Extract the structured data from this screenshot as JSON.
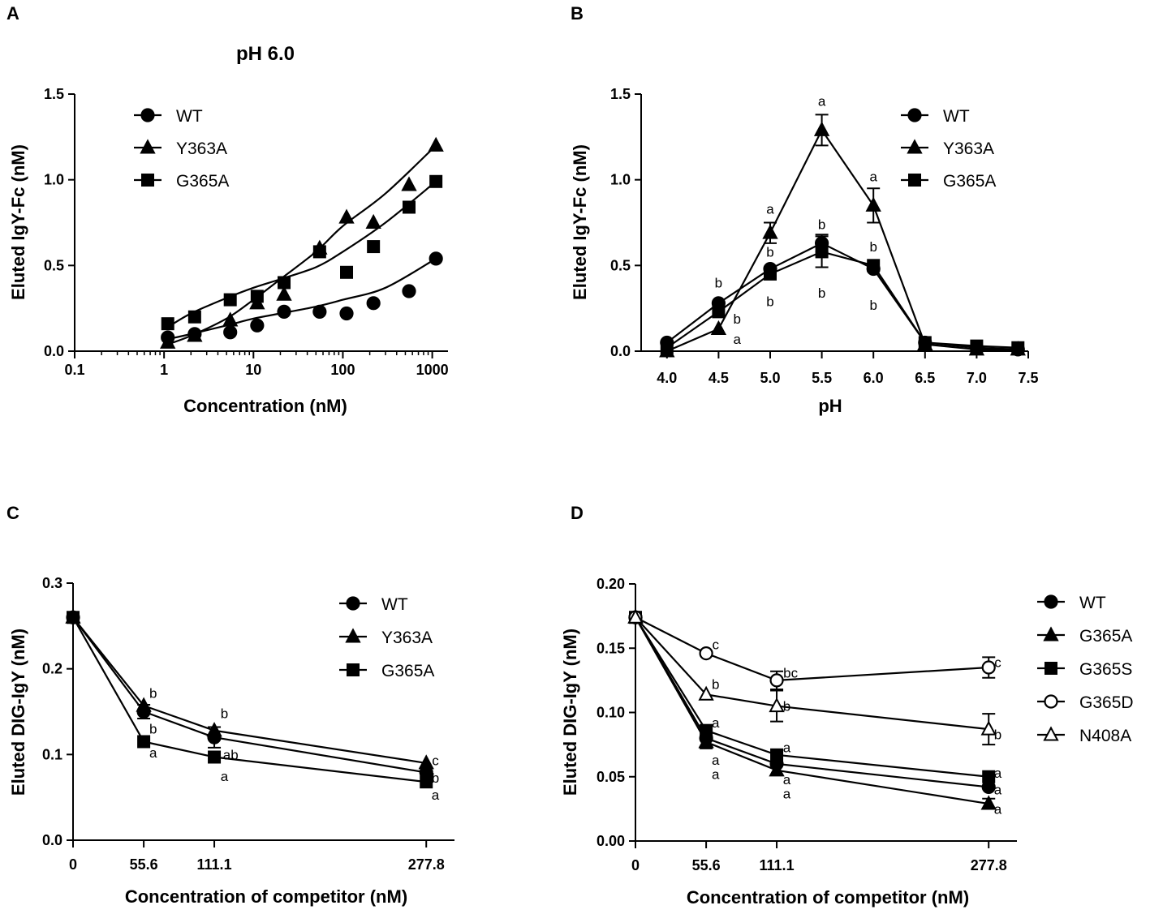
{
  "figure": {
    "panels": [
      "A",
      "B",
      "C",
      "D"
    ],
    "panel_A_title": "pH 6.0"
  },
  "chart_data": [
    {
      "panel": "A",
      "type": "line",
      "title": "pH 6.0",
      "xlabel": "Concentration (nM)",
      "ylabel": "Eluted IgY-Fc (nM)",
      "xscale": "log",
      "xlim": [
        0.1,
        1500
      ],
      "ylim": [
        0,
        1.5
      ],
      "xticks": [
        0.1,
        1,
        10,
        100,
        1000
      ],
      "xtick_labels": [
        "0.1",
        "1",
        "10",
        "100",
        "1000"
      ],
      "yticks": [
        0,
        0.5,
        1.0,
        1.5
      ],
      "ytick_labels": [
        "0.0",
        "0.5",
        "1.0",
        "1.5"
      ],
      "legend_position": "top-left",
      "series": [
        {
          "name": "WT",
          "marker": "circle-filled",
          "x": [
            1.1,
            2.2,
            5.5,
            11,
            22,
            55,
            110,
            220,
            550,
            1100
          ],
          "y": [
            0.08,
            0.1,
            0.11,
            0.15,
            0.23,
            0.23,
            0.22,
            0.28,
            0.35,
            0.54
          ],
          "curve_y": [
            0.07,
            0.1,
            0.15,
            0.19,
            0.22,
            0.26,
            0.3,
            0.37,
            0.54
          ]
        },
        {
          "name": "Y363A",
          "marker": "triangle-filled",
          "x": [
            1.1,
            2.2,
            5.5,
            11,
            22,
            55,
            110,
            220,
            550,
            1100
          ],
          "y": [
            0.05,
            0.09,
            0.18,
            0.28,
            0.33,
            0.6,
            0.78,
            0.75,
            0.97,
            1.2
          ],
          "curve_y": [
            0.04,
            0.09,
            0.19,
            0.3,
            0.42,
            0.58,
            0.73,
            0.92,
            1.2
          ]
        },
        {
          "name": "G365A",
          "marker": "square-filled",
          "x": [
            1.1,
            2.2,
            5.5,
            11,
            22,
            55,
            110,
            220,
            550,
            1100
          ],
          "y": [
            0.16,
            0.2,
            0.3,
            0.32,
            0.4,
            0.58,
            0.46,
            0.61,
            0.84,
            0.99
          ],
          "curve_y": [
            0.14,
            0.22,
            0.31,
            0.37,
            0.42,
            0.49,
            0.58,
            0.75,
            0.99
          ]
        }
      ],
      "curve_x": [
        1.1,
        2,
        5,
        10,
        20,
        50,
        100,
        300,
        1100
      ]
    },
    {
      "panel": "B",
      "type": "line",
      "xlabel": "pH",
      "ylabel": "Eluted IgY-Fc (nM)",
      "xlim": [
        3.75,
        7.5
      ],
      "ylim": [
        0,
        1.5
      ],
      "xticks": [
        4.0,
        4.5,
        5.0,
        5.5,
        6.0,
        6.5,
        7.0,
        7.5
      ],
      "xtick_labels": [
        "4.0",
        "4.5",
        "5.0",
        "5.5",
        "6.0",
        "6.5",
        "7.0",
        "7.5"
      ],
      "yticks": [
        0,
        0.5,
        1.0,
        1.5
      ],
      "ytick_labels": [
        "0.0",
        "0.5",
        "1.0",
        "1.5"
      ],
      "legend_position": "top-right",
      "series": [
        {
          "name": "WT",
          "marker": "circle-filled",
          "x": [
            4.0,
            4.5,
            5.0,
            5.5,
            6.0,
            6.5,
            7.0,
            7.4
          ],
          "y": [
            0.05,
            0.28,
            0.48,
            0.63,
            0.48,
            0.05,
            0.02,
            0.01
          ],
          "err": [
            0,
            0,
            0,
            0.05,
            0,
            0,
            0,
            0
          ]
        },
        {
          "name": "Y363A",
          "marker": "triangle-filled",
          "x": [
            4.0,
            4.5,
            5.0,
            5.5,
            6.0,
            6.5,
            7.0,
            7.4
          ],
          "y": [
            0.0,
            0.13,
            0.69,
            1.29,
            0.85,
            0.04,
            0.01,
            0.01
          ],
          "err": [
            0,
            0,
            0.06,
            0.09,
            0.1,
            0,
            0,
            0
          ]
        },
        {
          "name": "G365A",
          "marker": "square-filled",
          "x": [
            4.0,
            4.5,
            5.0,
            5.5,
            6.0,
            6.5,
            7.0,
            7.4
          ],
          "y": [
            0.02,
            0.23,
            0.45,
            0.58,
            0.5,
            0.05,
            0.03,
            0.02
          ],
          "err": [
            0,
            0,
            0,
            0.09,
            0,
            0,
            0,
            0
          ]
        }
      ],
      "annotations": [
        {
          "text": "a",
          "x": 5.5,
          "y": 1.46
        },
        {
          "text": "a",
          "x": 6.0,
          "y": 1.02
        },
        {
          "text": "a",
          "x": 5.0,
          "y": 0.83
        },
        {
          "text": "b",
          "x": 5.5,
          "y": 0.74
        },
        {
          "text": "b",
          "x": 5.0,
          "y": 0.58
        },
        {
          "text": "b",
          "x": 6.0,
          "y": 0.61
        },
        {
          "text": "b",
          "x": 4.5,
          "y": 0.4
        },
        {
          "text": "b",
          "x": 4.68,
          "y": 0.19
        },
        {
          "text": "a",
          "x": 4.68,
          "y": 0.07
        },
        {
          "text": "b",
          "x": 5.0,
          "y": 0.29
        },
        {
          "text": "b",
          "x": 5.5,
          "y": 0.34
        },
        {
          "text": "b",
          "x": 6.0,
          "y": 0.27
        }
      ]
    },
    {
      "panel": "C",
      "type": "line",
      "xlabel": "Concentration of competitor (nM)",
      "ylabel": "Eluted DIG-IgY (nM)",
      "xlim": [
        0,
        300
      ],
      "ylim": [
        0,
        0.3
      ],
      "xticks": [
        0,
        55.6,
        111.1,
        277.8
      ],
      "xtick_labels": [
        "0",
        "55.6",
        "111.1",
        "277.8"
      ],
      "yticks": [
        0,
        0.1,
        0.2,
        0.3
      ],
      "ytick_labels": [
        "0.0",
        "0.1",
        "0.2",
        "0.3"
      ],
      "legend_position": "top-right",
      "series": [
        {
          "name": "WT",
          "marker": "circle-filled",
          "x": [
            0,
            55.6,
            111.1,
            277.8
          ],
          "y": [
            0.26,
            0.15,
            0.12,
            0.079
          ],
          "err": [
            0,
            0.008,
            0.012,
            0
          ]
        },
        {
          "name": "Y363A",
          "marker": "triangle-filled",
          "x": [
            0,
            55.6,
            111.1,
            277.8
          ],
          "y": [
            0.26,
            0.157,
            0.128,
            0.09
          ],
          "err": [
            0,
            0,
            0,
            0
          ]
        },
        {
          "name": "G365A",
          "marker": "square-filled",
          "x": [
            0,
            55.6,
            111.1,
            277.8
          ],
          "y": [
            0.26,
            0.115,
            0.097,
            0.068
          ],
          "err": [
            0,
            0,
            0,
            0
          ]
        }
      ],
      "annotations": [
        {
          "text": "b",
          "x": 63,
          "y": 0.172
        },
        {
          "text": "b",
          "x": 63,
          "y": 0.13
        },
        {
          "text": "a",
          "x": 63,
          "y": 0.102
        },
        {
          "text": "b",
          "x": 119,
          "y": 0.148
        },
        {
          "text": "ab",
          "x": 124,
          "y": 0.1
        },
        {
          "text": "a",
          "x": 119,
          "y": 0.075
        },
        {
          "text": "c",
          "x": 285,
          "y": 0.093
        },
        {
          "text": "b",
          "x": 285,
          "y": 0.073
        },
        {
          "text": "a",
          "x": 285,
          "y": 0.053
        }
      ]
    },
    {
      "panel": "D",
      "type": "line",
      "xlabel": "Concentration of competitor (nM)",
      "ylabel": "Eluted DIG-IgY (nM)",
      "xlim": [
        0,
        300
      ],
      "ylim": [
        0,
        0.2
      ],
      "xticks": [
        0,
        55.6,
        111.1,
        277.8
      ],
      "xtick_labels": [
        "0",
        "55.6",
        "111.1",
        "277.8"
      ],
      "yticks": [
        0,
        0.05,
        0.1,
        0.15,
        0.2
      ],
      "ytick_labels": [
        "0.00",
        "0.05",
        "0.10",
        "0.15",
        "0.20"
      ],
      "legend_position": "right",
      "series": [
        {
          "name": "WT",
          "marker": "circle-filled",
          "x": [
            0,
            55.6,
            111.1,
            277.8
          ],
          "y": [
            0.174,
            0.08,
            0.06,
            0.042
          ],
          "err": [
            0,
            0,
            0,
            0
          ]
        },
        {
          "name": "G365A",
          "marker": "triangle-filled",
          "x": [
            0,
            55.6,
            111.1,
            277.8
          ],
          "y": [
            0.174,
            0.077,
            0.055,
            0.029
          ],
          "err": [
            0,
            0.005,
            0,
            0.004
          ]
        },
        {
          "name": "G365S",
          "marker": "square-filled",
          "x": [
            0,
            55.6,
            111.1,
            277.8
          ],
          "y": [
            0.174,
            0.086,
            0.067,
            0.05
          ],
          "err": [
            0,
            0,
            0,
            0
          ]
        },
        {
          "name": "G365D",
          "marker": "circle-open",
          "x": [
            0,
            55.6,
            111.1,
            277.8
          ],
          "y": [
            0.174,
            0.146,
            0.125,
            0.135
          ],
          "err": [
            0,
            0,
            0.007,
            0.008
          ]
        },
        {
          "name": "N408A",
          "marker": "triangle-open",
          "x": [
            0,
            55.6,
            111.1,
            277.8
          ],
          "y": [
            0.174,
            0.114,
            0.105,
            0.087
          ],
          "err": [
            0,
            0,
            0.012,
            0.012
          ]
        }
      ],
      "annotations": [
        {
          "text": "c",
          "x": 63,
          "y": 0.153
        },
        {
          "text": "bc",
          "x": 122,
          "y": 0.131
        },
        {
          "text": "c",
          "x": 285,
          "y": 0.139
        },
        {
          "text": "b",
          "x": 63,
          "y": 0.122
        },
        {
          "text": "b",
          "x": 119,
          "y": 0.105
        },
        {
          "text": "b",
          "x": 285,
          "y": 0.083
        },
        {
          "text": "a",
          "x": 63,
          "y": 0.092
        },
        {
          "text": "a",
          "x": 63,
          "y": 0.063
        },
        {
          "text": "a",
          "x": 63,
          "y": 0.052
        },
        {
          "text": "a",
          "x": 119,
          "y": 0.073
        },
        {
          "text": "a",
          "x": 119,
          "y": 0.048
        },
        {
          "text": "a",
          "x": 119,
          "y": 0.037
        },
        {
          "text": "a",
          "x": 285,
          "y": 0.053
        },
        {
          "text": "a",
          "x": 285,
          "y": 0.04
        },
        {
          "text": "a",
          "x": 285,
          "y": 0.025
        }
      ]
    }
  ]
}
